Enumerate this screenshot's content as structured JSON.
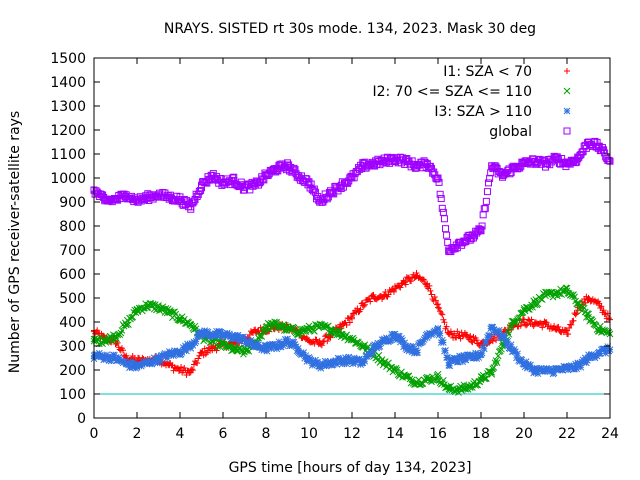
{
  "chart_data": {
    "type": "scatter",
    "title": "NRAYS. SISTED rt 30s mode. 134, 2023. Mask 30 deg",
    "xlabel": "GPS time [hours of day 134, 2023]",
    "ylabel": "Number of GPS receiver-satellite rays",
    "xlim": [
      0,
      24
    ],
    "ylim": [
      0,
      1500
    ],
    "xticks": [
      0,
      2,
      4,
      6,
      8,
      10,
      12,
      14,
      16,
      18,
      20,
      22,
      24
    ],
    "yticks": [
      0,
      100,
      200,
      300,
      400,
      500,
      600,
      700,
      800,
      900,
      1000,
      1100,
      1200,
      1300,
      1400,
      1500
    ],
    "legend_position": "top-right",
    "reference_line": {
      "y": 100,
      "color": "#00c0c0"
    },
    "series": [
      {
        "name": "I1: SZA < 70",
        "marker": "+",
        "color": "#ff0000",
        "points": [
          [
            0,
            360
          ],
          [
            0.5,
            330
          ],
          [
            1,
            320
          ],
          [
            1.5,
            250
          ],
          [
            2,
            240
          ],
          [
            2.5,
            240
          ],
          [
            3,
            245
          ],
          [
            3.5,
            220
          ],
          [
            4,
            200
          ],
          [
            4.5,
            190
          ],
          [
            5,
            270
          ],
          [
            5.5,
            290
          ],
          [
            6,
            305
          ],
          [
            6.5,
            310
          ],
          [
            7,
            330
          ],
          [
            7.5,
            360
          ],
          [
            8,
            370
          ],
          [
            8.5,
            380
          ],
          [
            9,
            375
          ],
          [
            9.5,
            360
          ],
          [
            10,
            320
          ],
          [
            10.5,
            310
          ],
          [
            11,
            345
          ],
          [
            11.5,
            380
          ],
          [
            12,
            420
          ],
          [
            12.5,
            470
          ],
          [
            13,
            505
          ],
          [
            13.5,
            510
          ],
          [
            14,
            540
          ],
          [
            14.5,
            570
          ],
          [
            15,
            590
          ],
          [
            15.5,
            560
          ],
          [
            16,
            460
          ],
          [
            16.5,
            350
          ],
          [
            17,
            345
          ],
          [
            17.5,
            335
          ],
          [
            18,
            310
          ],
          [
            18.5,
            330
          ],
          [
            19,
            350
          ],
          [
            19.5,
            390
          ],
          [
            20,
            400
          ],
          [
            20.5,
            395
          ],
          [
            21,
            390
          ],
          [
            21.5,
            370
          ],
          [
            22,
            350
          ],
          [
            22.5,
            460
          ],
          [
            23,
            500
          ],
          [
            23.5,
            470
          ],
          [
            24,
            410
          ]
        ]
      },
      {
        "name": "I2: 70 <= SZA <= 110",
        "marker": "x",
        "color": "#00a000",
        "points": [
          [
            0,
            320
          ],
          [
            0.5,
            325
          ],
          [
            1,
            340
          ],
          [
            1.5,
            390
          ],
          [
            2,
            450
          ],
          [
            2.5,
            470
          ],
          [
            3,
            460
          ],
          [
            3.5,
            440
          ],
          [
            4,
            415
          ],
          [
            4.5,
            390
          ],
          [
            5,
            340
          ],
          [
            5.5,
            320
          ],
          [
            6,
            305
          ],
          [
            6.5,
            285
          ],
          [
            7,
            275
          ],
          [
            7.5,
            310
          ],
          [
            8,
            380
          ],
          [
            8.5,
            390
          ],
          [
            9,
            370
          ],
          [
            9.5,
            360
          ],
          [
            10,
            370
          ],
          [
            10.5,
            380
          ],
          [
            11,
            370
          ],
          [
            11.5,
            350
          ],
          [
            12,
            330
          ],
          [
            12.5,
            300
          ],
          [
            13,
            270
          ],
          [
            13.5,
            230
          ],
          [
            14,
            200
          ],
          [
            14.5,
            170
          ],
          [
            15,
            150
          ],
          [
            15.5,
            160
          ],
          [
            16,
            170
          ],
          [
            16.5,
            120
          ],
          [
            17,
            120
          ],
          [
            17.5,
            130
          ],
          [
            18,
            160
          ],
          [
            18.5,
            190
          ],
          [
            19,
            300
          ],
          [
            19.5,
            400
          ],
          [
            20,
            450
          ],
          [
            20.5,
            480
          ],
          [
            21,
            510
          ],
          [
            21.5,
            520
          ],
          [
            22,
            530
          ],
          [
            22.5,
            480
          ],
          [
            23,
            420
          ],
          [
            23.5,
            370
          ],
          [
            24,
            350
          ]
        ]
      },
      {
        "name": "I3: SZA > 110",
        "marker": "*",
        "color": "#3070e0",
        "points": [
          [
            0,
            260
          ],
          [
            0.5,
            255
          ],
          [
            1,
            250
          ],
          [
            1.5,
            225
          ],
          [
            2,
            215
          ],
          [
            2.5,
            230
          ],
          [
            3,
            245
          ],
          [
            3.5,
            265
          ],
          [
            4,
            275
          ],
          [
            4.5,
            305
          ],
          [
            5,
            355
          ],
          [
            5.5,
            350
          ],
          [
            6,
            345
          ],
          [
            6.5,
            340
          ],
          [
            7,
            325
          ],
          [
            7.5,
            300
          ],
          [
            8,
            290
          ],
          [
            8.5,
            300
          ],
          [
            9,
            320
          ],
          [
            9.5,
            290
          ],
          [
            10,
            240
          ],
          [
            10.5,
            220
          ],
          [
            11,
            230
          ],
          [
            11.5,
            240
          ],
          [
            12,
            240
          ],
          [
            12.5,
            230
          ],
          [
            13,
            290
          ],
          [
            13.5,
            320
          ],
          [
            14,
            350
          ],
          [
            14.5,
            300
          ],
          [
            15,
            280
          ],
          [
            15.5,
            350
          ],
          [
            16,
            370
          ],
          [
            16.5,
            230
          ],
          [
            17,
            245
          ],
          [
            17.5,
            250
          ],
          [
            18,
            265
          ],
          [
            18.5,
            380
          ],
          [
            19,
            340
          ],
          [
            19.5,
            280
          ],
          [
            20,
            225
          ],
          [
            20.5,
            200
          ],
          [
            21,
            195
          ],
          [
            21.5,
            200
          ],
          [
            22,
            205
          ],
          [
            22.5,
            215
          ],
          [
            23,
            250
          ],
          [
            23.5,
            275
          ],
          [
            24,
            285
          ]
        ]
      },
      {
        "name": "global",
        "marker": "square",
        "color": "#a000ff",
        "points": [
          [
            0,
            950
          ],
          [
            0.5,
            905
          ],
          [
            1,
            910
          ],
          [
            1.5,
            930
          ],
          [
            2,
            905
          ],
          [
            2.5,
            920
          ],
          [
            3,
            930
          ],
          [
            3.5,
            920
          ],
          [
            4,
            910
          ],
          [
            4.5,
            880
          ],
          [
            5,
            970
          ],
          [
            5.5,
            1010
          ],
          [
            6,
            980
          ],
          [
            6.5,
            990
          ],
          [
            7,
            960
          ],
          [
            7.5,
            970
          ],
          [
            8,
            1010
          ],
          [
            8.5,
            1040
          ],
          [
            9,
            1050
          ],
          [
            9.5,
            1010
          ],
          [
            10,
            980
          ],
          [
            10.5,
            900
          ],
          [
            11,
            940
          ],
          [
            11.5,
            970
          ],
          [
            12,
            1000
          ],
          [
            12.5,
            1050
          ],
          [
            13,
            1060
          ],
          [
            13.5,
            1070
          ],
          [
            14,
            1080
          ],
          [
            14.5,
            1070
          ],
          [
            15,
            1050
          ],
          [
            15.5,
            1060
          ],
          [
            16,
            1000
          ],
          [
            16.5,
            700
          ],
          [
            17,
            730
          ],
          [
            17.5,
            750
          ],
          [
            18,
            780
          ],
          [
            18.5,
            1050
          ],
          [
            19,
            1010
          ],
          [
            19.5,
            1040
          ],
          [
            20,
            1060
          ],
          [
            20.5,
            1070
          ],
          [
            21,
            1060
          ],
          [
            21.5,
            1080
          ],
          [
            22,
            1060
          ],
          [
            22.5,
            1080
          ],
          [
            23,
            1150
          ],
          [
            23.5,
            1130
          ],
          [
            24,
            1070
          ]
        ]
      }
    ]
  }
}
